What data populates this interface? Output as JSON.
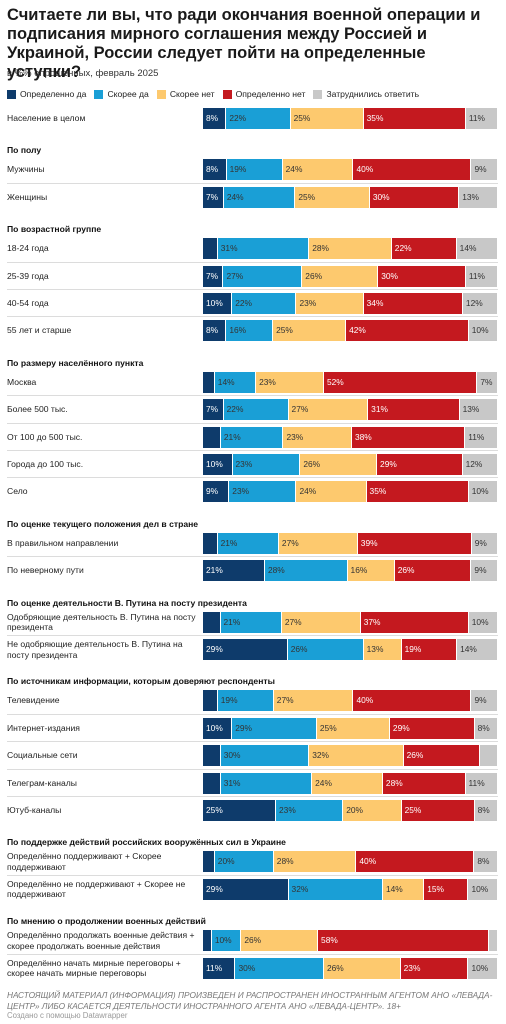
{
  "title": "Считаете ли вы, что ради окончания военной операции и подписания мирного соглашения между Россией и Украиной, России следует пойти на определенные уступки?",
  "subtitle": "в %% опрошенных, февраль 2025",
  "footnote": "НАСТОЯЩИЙ МАТЕРИАЛ (ИНФОРМАЦИЯ) ПРОИЗВЕДЕН И РАСПРОСТРАНЕН ИНОСТРАННЫМ АГЕНТОМ АНО «ЛЕВАДА-ЦЕНТР» ЛИБО КАСАЕТСЯ ДЕЯТЕЛЬНОСТИ ИНОСТРАННОГО АГЕНТА АНО «ЛЕВАДА-ЦЕНТР». 18+",
  "credit": "Создано с помощью Datawrapper",
  "chart_data": {
    "type": "bar",
    "orientation": "horizontal",
    "stacked": true,
    "xlim": [
      0,
      100
    ],
    "legend_position": "top-left",
    "series": [
      {
        "name": "Определенно да",
        "color": "#0e3b6b"
      },
      {
        "name": "Скорее да",
        "color": "#1a9fd6"
      },
      {
        "name": "Скорее нет",
        "color": "#fdc96e"
      },
      {
        "name": "Определенно нет",
        "color": "#c4191f"
      },
      {
        "name": "Затруднились ответить",
        "color": "#c8c8c8"
      }
    ],
    "rows": [
      {
        "label": "Население в целом",
        "values": [
          8,
          22,
          25,
          35,
          11
        ],
        "labels": [
          "8%",
          "22%",
          "25%",
          "35%",
          "11%"
        ]
      },
      {
        "section": "По полу"
      },
      {
        "label": "Мужчины",
        "values": [
          8,
          19,
          24,
          40,
          9
        ],
        "labels": [
          "8%",
          "19%",
          "24%",
          "40%",
          "9%"
        ]
      },
      {
        "label": "Женщины",
        "values": [
          7,
          24,
          25,
          30,
          13
        ],
        "labels": [
          "7%",
          "24%",
          "25%",
          "30%",
          "13%"
        ]
      },
      {
        "section": "По возрастной группе"
      },
      {
        "label": "18-24 года",
        "values": [
          5,
          31,
          28,
          22,
          14
        ],
        "labels": [
          "",
          "31%",
          "28%",
          "22%",
          "14%"
        ]
      },
      {
        "label": "25-39 года",
        "values": [
          7,
          27,
          26,
          30,
          11
        ],
        "labels": [
          "7%",
          "27%",
          "26%",
          "30%",
          "11%"
        ]
      },
      {
        "label": "40-54 года",
        "values": [
          10,
          22,
          23,
          34,
          12
        ],
        "labels": [
          "10%",
          "22%",
          "23%",
          "34%",
          "12%"
        ]
      },
      {
        "label": "55 лет и старше",
        "values": [
          8,
          16,
          25,
          42,
          10
        ],
        "labels": [
          "8%",
          "16%",
          "25%",
          "42%",
          "10%"
        ]
      },
      {
        "section": "По размеру населённого пункта"
      },
      {
        "label": "Москва",
        "values": [
          4,
          14,
          23,
          52,
          7
        ],
        "labels": [
          "",
          "14%",
          "23%",
          "52%",
          "7%"
        ]
      },
      {
        "label": "Более 500 тыс.",
        "values": [
          7,
          22,
          27,
          31,
          13
        ],
        "labels": [
          "7%",
          "22%",
          "27%",
          "31%",
          "13%"
        ]
      },
      {
        "label": "От 100 до 500 тыс.",
        "values": [
          6,
          21,
          23,
          38,
          11
        ],
        "labels": [
          "",
          "21%",
          "23%",
          "38%",
          "11%"
        ]
      },
      {
        "label": "Города до 100 тыс.",
        "values": [
          10,
          23,
          26,
          29,
          12
        ],
        "labels": [
          "10%",
          "23%",
          "26%",
          "29%",
          "12%"
        ]
      },
      {
        "label": "Село",
        "values": [
          9,
          23,
          24,
          35,
          10
        ],
        "labels": [
          "9%",
          "23%",
          "24%",
          "35%",
          "10%"
        ]
      },
      {
        "section": "По оценке текущего положения дел в стране"
      },
      {
        "label": "В правильном направлении",
        "values": [
          5,
          21,
          27,
          39,
          9
        ],
        "labels": [
          "",
          "21%",
          "27%",
          "39%",
          "9%"
        ]
      },
      {
        "label": "По неверному пути",
        "values": [
          21,
          28,
          16,
          26,
          9
        ],
        "labels": [
          "21%",
          "28%",
          "16%",
          "26%",
          "9%"
        ]
      },
      {
        "section": "По оценке деятельности В. Путина на посту президента"
      },
      {
        "label": "Одобряющие деятельность В. Путина на посту президента",
        "values": [
          6,
          21,
          27,
          37,
          10
        ],
        "labels": [
          "",
          "21%",
          "27%",
          "37%",
          "10%"
        ]
      },
      {
        "label": "Не одобряющие деятельность В. Путина на посту президента",
        "values": [
          29,
          26,
          13,
          19,
          14
        ],
        "labels": [
          "29%",
          "26%",
          "13%",
          "19%",
          "14%"
        ]
      },
      {
        "section": "По источникам информации, которым доверяют респонденты"
      },
      {
        "label": "Телевидение",
        "values": [
          5,
          19,
          27,
          40,
          9
        ],
        "labels": [
          "",
          "19%",
          "27%",
          "40%",
          "9%"
        ]
      },
      {
        "label": "Интернет-издания",
        "values": [
          10,
          29,
          25,
          29,
          8
        ],
        "labels": [
          "10%",
          "29%",
          "25%",
          "29%",
          "8%"
        ]
      },
      {
        "label": "Социальные сети",
        "values": [
          6,
          30,
          32,
          26,
          6
        ],
        "labels": [
          "",
          "30%",
          "32%",
          "26%",
          ""
        ]
      },
      {
        "label": "Телеграм-каналы",
        "values": [
          6,
          31,
          24,
          28,
          11
        ],
        "labels": [
          "",
          "31%",
          "24%",
          "28%",
          "11%"
        ]
      },
      {
        "label": "Ютуб-каналы",
        "values": [
          25,
          23,
          20,
          25,
          8
        ],
        "labels": [
          "25%",
          "23%",
          "20%",
          "25%",
          "8%"
        ]
      },
      {
        "section": "По поддержке действий российских вооружённых сил в Украине"
      },
      {
        "label": "Определённо поддерживают + Скорее поддерживают",
        "values": [
          4,
          20,
          28,
          40,
          8
        ],
        "labels": [
          "",
          "20%",
          "28%",
          "40%",
          "8%"
        ]
      },
      {
        "label": "Определённо не поддерживают + Скорее не поддерживают",
        "values": [
          29,
          32,
          14,
          15,
          10
        ],
        "labels": [
          "29%",
          "32%",
          "14%",
          "15%",
          "10%"
        ]
      },
      {
        "section": "По мнению о продолжении военных действий"
      },
      {
        "label": "Определённо продолжать военные действия + скорее продолжать военные действия",
        "values": [
          3,
          10,
          26,
          58,
          3
        ],
        "labels": [
          "",
          "10%",
          "26%",
          "58%",
          ""
        ]
      },
      {
        "label": "Определённо начать мирные переговоры + скорее начать мирные переговоры",
        "values": [
          11,
          30,
          26,
          23,
          10
        ],
        "labels": [
          "11%",
          "30%",
          "26%",
          "23%",
          "10%"
        ]
      }
    ]
  }
}
